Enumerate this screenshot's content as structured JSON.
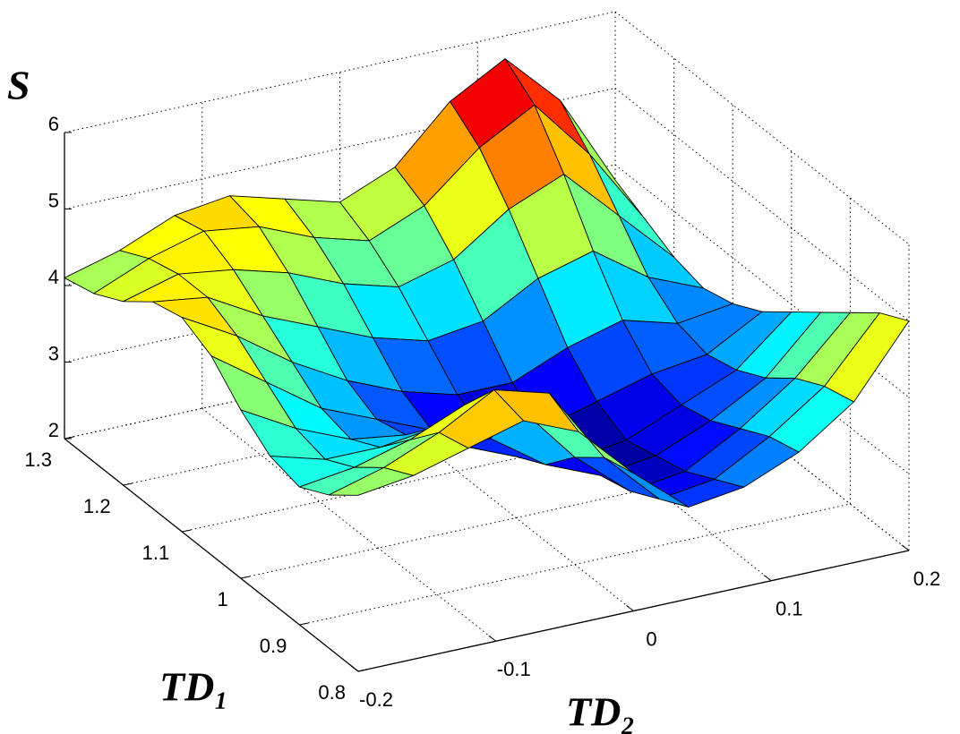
{
  "chart_data": {
    "type": "surface",
    "zlabel": "S",
    "ylabel": "TD₁",
    "xlabel": "TD₂",
    "x": [
      -0.2,
      -0.16,
      -0.12,
      -0.08,
      -0.04,
      0,
      0.04,
      0.08,
      0.12,
      0.16,
      0.2
    ],
    "y": [
      0.8,
      0.85,
      0.9,
      0.95,
      1.0,
      1.05,
      1.1,
      1.15,
      1.2,
      1.25,
      1.3
    ],
    "z": [
      [
        4.3,
        4.4,
        4.6,
        4.8,
        4.5,
        3.8,
        3.2,
        3.3,
        3.6,
        4.1,
        5.0
      ],
      [
        4.0,
        4.2,
        4.5,
        4.9,
        4.7,
        3.7,
        3.0,
        3.1,
        3.5,
        4.0,
        4.8
      ],
      [
        3.8,
        3.9,
        4.1,
        4.4,
        4.2,
        3.4,
        2.8,
        2.9,
        3.3,
        3.8,
        4.5
      ],
      [
        3.9,
        3.7,
        3.7,
        3.8,
        3.5,
        3.0,
        2.7,
        2.8,
        3.1,
        3.5,
        4.2
      ],
      [
        4.2,
        3.8,
        3.5,
        3.4,
        3.1,
        2.8,
        2.6,
        2.7,
        3.0,
        3.3,
        3.9
      ],
      [
        4.6,
        4.1,
        3.6,
        3.3,
        3.0,
        2.8,
        2.7,
        2.9,
        3.1,
        3.2,
        3.6
      ],
      [
        4.8,
        4.4,
        3.9,
        3.5,
        3.2,
        3.0,
        3.0,
        3.3,
        3.5,
        3.3,
        3.4
      ],
      [
        4.7,
        4.6,
        4.2,
        3.9,
        3.6,
        3.4,
        3.5,
        3.9,
        4.1,
        3.6,
        3.3
      ],
      [
        4.4,
        4.6,
        4.5,
        4.3,
        4.0,
        3.8,
        4.0,
        4.5,
        4.8,
        4.1,
        3.4
      ],
      [
        4.2,
        4.5,
        4.7,
        4.6,
        4.3,
        4.1,
        4.4,
        5.0,
        5.4,
        4.6,
        3.6
      ],
      [
        4.1,
        4.3,
        4.6,
        4.7,
        4.5,
        4.3,
        4.6,
        5.3,
        5.7,
        5.0,
        3.8
      ]
    ],
    "xlim": [
      -0.2,
      0.2
    ],
    "ylim": [
      0.8,
      1.3
    ],
    "zlim": [
      2,
      6
    ],
    "xticks": [
      -0.2,
      -0.1,
      0,
      0.1,
      0.2
    ],
    "yticks": [
      0.8,
      0.9,
      1,
      1.1,
      1.2,
      1.3
    ],
    "zticks": [
      2,
      3,
      4,
      5,
      6
    ],
    "grid": true,
    "colormap": "jet",
    "edge_color": "#000000"
  }
}
